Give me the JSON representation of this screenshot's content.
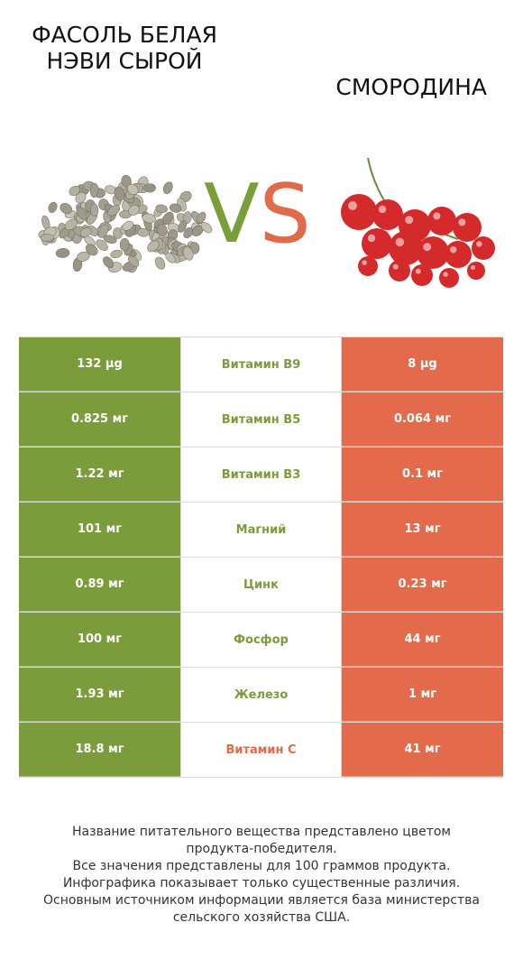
{
  "titles": {
    "left": "ФАСОЛЬ БЕЛАЯ НЭВИ СЫРОЙ",
    "right": "СМОРОДИНА",
    "vs_v": "V",
    "vs_s": "S"
  },
  "colors": {
    "left_product": "#7b9c3a",
    "right_product": "#e36a4a"
  },
  "images": {
    "left": "white-navy-beans-image",
    "right": "red-currant-image"
  },
  "rows": [
    {
      "left": "132 µg",
      "nutrient": "Витамин B9",
      "right": "8 µg",
      "winner": "left"
    },
    {
      "left": "0.825 мг",
      "nutrient": "Витамин B5",
      "right": "0.064 мг",
      "winner": "left"
    },
    {
      "left": "1.22 мг",
      "nutrient": "Витамин B3",
      "right": "0.1 мг",
      "winner": "left"
    },
    {
      "left": "101 мг",
      "nutrient": "Магний",
      "right": "13 мг",
      "winner": "left"
    },
    {
      "left": "0.89 мг",
      "nutrient": "Цинк",
      "right": "0.23 мг",
      "winner": "left"
    },
    {
      "left": "100 мг",
      "nutrient": "Фосфор",
      "right": "44 мг",
      "winner": "left"
    },
    {
      "left": "1.93 мг",
      "nutrient": "Железо",
      "right": "1 мг",
      "winner": "left"
    },
    {
      "left": "18.8 мг",
      "nutrient": "Витамин C",
      "right": "41 мг",
      "winner": "right"
    }
  ],
  "footer": [
    "Название питательного вещества представлено цветом",
    "продукта-победителя.",
    "Все значения представлены для 100 граммов продукта.",
    "Инфографика показывает только существенные различия.",
    "Основным источником информации является база министерства",
    "сельского хозяйства США."
  ]
}
